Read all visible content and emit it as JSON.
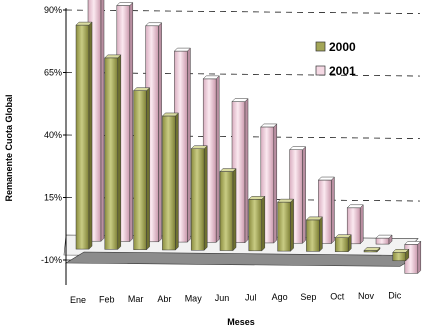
{
  "chart_data": {
    "type": "bar",
    "title": "",
    "xlabel": "Meses",
    "ylabel": "Remanente Cuota Global",
    "categories": [
      "Ene",
      "Feb",
      "Mar",
      "Abr",
      "May",
      "Jun",
      "Jul",
      "Ago",
      "Sep",
      "Oct",
      "Nov",
      "Dic"
    ],
    "y_ticks": [
      "-10%",
      "15%",
      "40%",
      "65%",
      "90%"
    ],
    "ylim": [
      -10,
      100
    ],
    "grid": true,
    "legend_position": "top-right",
    "series": [
      {
        "name": "2000",
        "color": "#b5b86a",
        "values": [
          88,
          75,
          62,
          52,
          39,
          30,
          19,
          18,
          11,
          4,
          -1,
          -5
        ]
      },
      {
        "name": "2001",
        "color": "#f1d2de",
        "values": [
          98,
          92,
          84,
          74,
          63,
          54,
          44,
          35,
          23,
          12,
          0,
          -14
        ]
      }
    ]
  }
}
